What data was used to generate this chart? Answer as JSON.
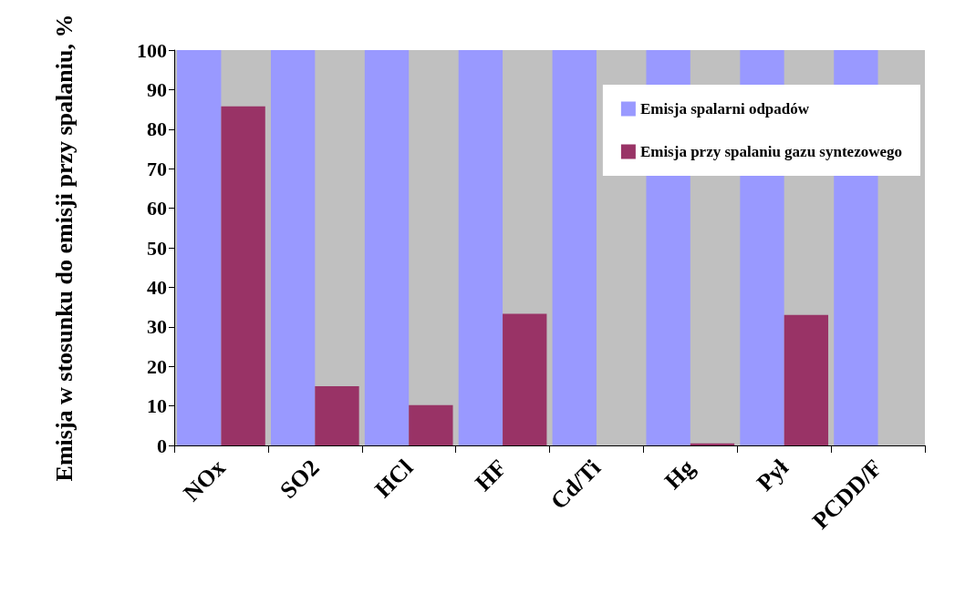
{
  "chart_data": {
    "type": "bar",
    "ylabel": "Emisja w stosunku do emisji przy spalaniu, %",
    "categories": [
      "NOx",
      "SO2",
      "HCl",
      "HF",
      "Cd/Ti",
      "Hg",
      "Pył",
      "PCDD/F"
    ],
    "series": [
      {
        "name": "Emisja spalarni odpadów",
        "color": "#9999ff",
        "values": [
          100,
          100,
          100,
          100,
          100,
          100,
          100,
          100
        ]
      },
      {
        "name": "Emisja przy spalaniu gazu syntezowego",
        "color": "#993366",
        "values": [
          85.8,
          15,
          10.2,
          33.3,
          0,
          0.5,
          33,
          0
        ]
      }
    ],
    "ylim": [
      0,
      100
    ],
    "yticks": [
      0,
      10,
      20,
      30,
      40,
      50,
      60,
      70,
      80,
      90,
      100
    ],
    "grid": false,
    "legend": "top right"
  }
}
